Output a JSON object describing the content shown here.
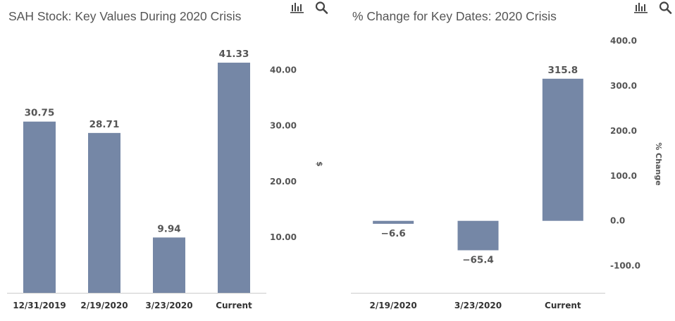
{
  "chart_data": [
    {
      "type": "bar",
      "title": "SAH Stock: Key Values During 2020 Crisis",
      "categories": [
        "12/31/2019",
        "2/19/2020",
        "3/23/2020",
        "Current"
      ],
      "values": [
        30.75,
        28.71,
        9.94,
        41.33
      ],
      "value_labels": [
        "30.75",
        "28.71",
        "9.94",
        "41.33"
      ],
      "ylabel": "$",
      "yticks": [
        10,
        20,
        30,
        40
      ],
      "ytick_labels": [
        "10.00",
        "20.00",
        "30.00",
        "40.00"
      ],
      "ylim": [
        0,
        45
      ],
      "y_axis_side": "right",
      "grid": false,
      "bar_color": "#7587a6"
    },
    {
      "type": "bar",
      "title": "% Change for Key Dates: 2020 Crisis",
      "categories": [
        "2/19/2020",
        "3/23/2020",
        "Current"
      ],
      "values": [
        -6.6,
        -65.4,
        315.8
      ],
      "value_labels": [
        "−6.6",
        "−65.4",
        "315.8"
      ],
      "ylabel": "% Change",
      "yticks": [
        -100,
        0,
        100,
        200,
        300,
        400
      ],
      "ytick_labels": [
        "-100.0",
        "0.0",
        "100.0",
        "200.0",
        "300.0",
        "400.0"
      ],
      "ylim": [
        -160,
        400
      ],
      "y_axis_side": "right",
      "grid": false,
      "bar_color": "#7587a6"
    }
  ],
  "toolbar": {
    "icons": [
      "bar-chart-icon",
      "search-icon"
    ]
  }
}
